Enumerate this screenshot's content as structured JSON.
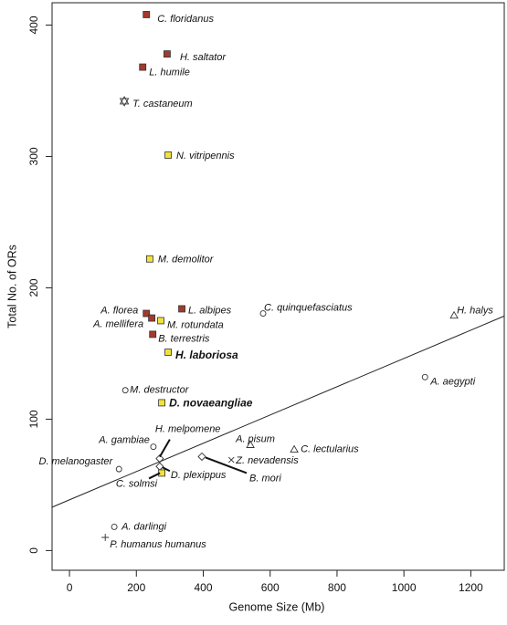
{
  "chart_data": {
    "type": "scatter",
    "x_label": "Genome Size (Mb)",
    "y_label": "Total No. of ORs",
    "xlim": [
      -52,
      1300
    ],
    "ylim": [
      -15,
      417
    ],
    "xticks": [
      0,
      200,
      400,
      600,
      800,
      1000,
      1200
    ],
    "yticks": [
      0,
      100,
      200,
      300,
      400
    ],
    "trend_line": {
      "x": [
        -52,
        1300
      ],
      "y": [
        33,
        178.5
      ]
    },
    "points": [
      {
        "label": "C. floridanus",
        "x": 230,
        "y": 408,
        "marker": "square",
        "color": "#a33a2c"
      },
      {
        "label": "H. saltator",
        "x": 292,
        "y": 378,
        "marker": "square",
        "color": "#a33a2c"
      },
      {
        "label": "L. humile",
        "x": 219,
        "y": 368,
        "marker": "square",
        "color": "#a33a2c"
      },
      {
        "label": "T. castaneum",
        "x": 164,
        "y": 342,
        "marker": "star"
      },
      {
        "label": "N. vitripennis",
        "x": 295,
        "y": 301,
        "marker": "square",
        "color": "#f0e23a"
      },
      {
        "label": "M. demolitor",
        "x": 240,
        "y": 222,
        "marker": "square",
        "color": "#f0e23a"
      },
      {
        "label": "A. florea",
        "x": 230,
        "y": 180.5,
        "marker": "square",
        "color": "#a33a2c"
      },
      {
        "label": "A. mellifera",
        "x": 246,
        "y": 177,
        "marker": "square",
        "color": "#a33a2c"
      },
      {
        "label": "M. rotundata",
        "x": 273,
        "y": 175,
        "marker": "square",
        "color": "#f0e23a"
      },
      {
        "label": "L. albipes",
        "x": 336,
        "y": 184,
        "marker": "square",
        "color": "#a33a2c"
      },
      {
        "label": "B. terrestris",
        "x": 249,
        "y": 164.6,
        "marker": "square",
        "color": "#a33a2c"
      },
      {
        "label": "H. laboriosa",
        "x": 295,
        "y": 151,
        "marker": "square",
        "color": "#f0e23a",
        "bold": true
      },
      {
        "label": "C. quinquefasciatus",
        "x": 579,
        "y": 180.5,
        "marker": "circle"
      },
      {
        "label": "H. halys",
        "x": 1150,
        "y": 179,
        "marker": "triangle"
      },
      {
        "label": "M. destructor",
        "x": 167,
        "y": 122,
        "marker": "circle"
      },
      {
        "label": "A. aegypti",
        "x": 1063,
        "y": 132,
        "marker": "circle"
      },
      {
        "label": "D. novaeangliae",
        "x": 276,
        "y": 112.5,
        "marker": "square",
        "color": "#f0e23a",
        "bold": true
      },
      {
        "label": "A. gambiae",
        "x": 251,
        "y": 79,
        "marker": "circle"
      },
      {
        "label": "H. melpomene",
        "x": 270,
        "y": 70,
        "marker": "diamond"
      },
      {
        "label": "D. melanogaster",
        "x": 148,
        "y": 62,
        "marker": "circle"
      },
      {
        "label": "D. plexippus",
        "x": 270,
        "y": 64,
        "marker": "diamond"
      },
      {
        "label": "C. solmsi",
        "x": 276,
        "y": 59,
        "marker": "square",
        "color": "#f0e23a"
      },
      {
        "label": "A. pisum",
        "x": 541,
        "y": 80.5,
        "marker": "triangle"
      },
      {
        "label": "C. lectularius",
        "x": 672,
        "y": 77,
        "marker": "triangle"
      },
      {
        "label": "Z. nevadensis",
        "x": 484,
        "y": 69,
        "marker": "cross"
      },
      {
        "label": "B. mori",
        "x": 396,
        "y": 71.5,
        "marker": "diamond"
      },
      {
        "label": "A. darlingi",
        "x": 134,
        "y": 18,
        "marker": "circle"
      },
      {
        "label": "P. humanus humanus",
        "x": 107,
        "y": 10,
        "marker": "plus"
      }
    ]
  }
}
